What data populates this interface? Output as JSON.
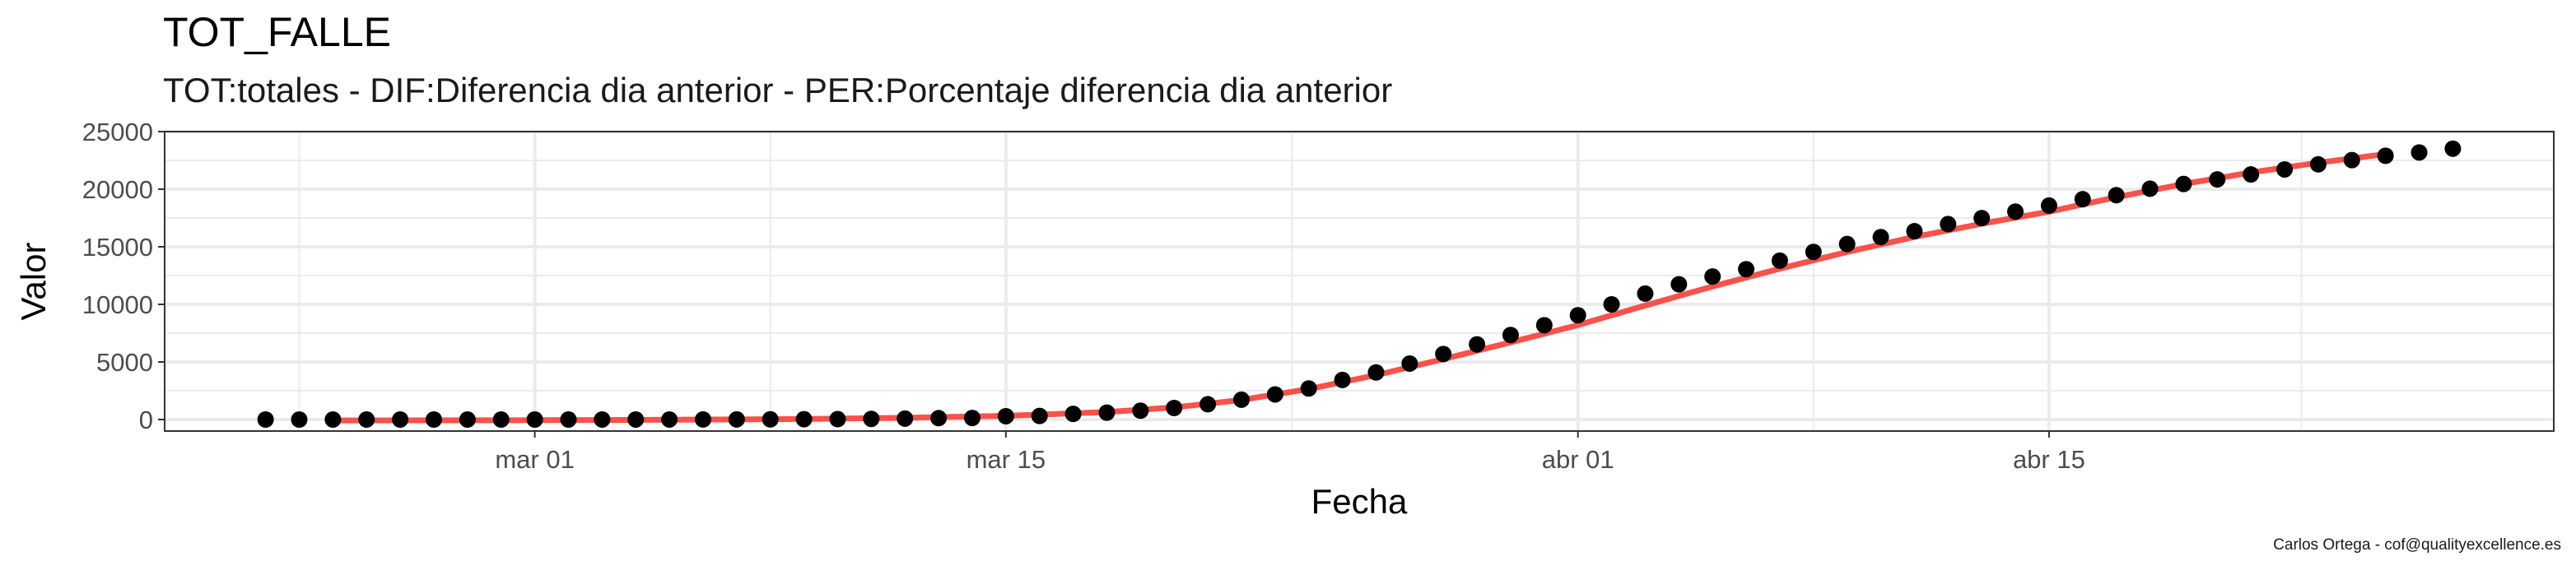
{
  "chart_data": {
    "type": "line",
    "title": "TOT_FALLE",
    "subtitle": "TOT:totales - DIF:Diferencia dia anterior - PER:Porcentaje diferencia dia anterior",
    "xlabel": "Fecha",
    "ylabel": "Valor",
    "caption": "Carlos Ortega - cof@qualityexcellence.es",
    "x_tick_labels": [
      "mar 01",
      "mar 15",
      "abr 01",
      "abr 15"
    ],
    "y_tick_labels": [
      "0",
      "5000",
      "10000",
      "15000",
      "20000",
      "25000"
    ],
    "ylim": [
      -1000,
      25000
    ],
    "xlim": [
      "2020-02-19",
      "2020-04-30"
    ],
    "grid": true,
    "legend": "none",
    "colors": {
      "points": "#000000",
      "fit_line": "#f8524b",
      "grid": "#ebebeb",
      "panel_border": "#333333"
    },
    "series": [
      {
        "type": "scatter",
        "x": [
          "2020-02-22",
          "2020-02-23",
          "2020-02-24",
          "2020-02-25",
          "2020-02-26",
          "2020-02-27",
          "2020-02-28",
          "2020-02-29",
          "2020-03-01",
          "2020-03-02",
          "2020-03-03",
          "2020-03-04",
          "2020-03-05",
          "2020-03-06",
          "2020-03-07",
          "2020-03-08",
          "2020-03-09",
          "2020-03-10",
          "2020-03-11",
          "2020-03-12",
          "2020-03-13",
          "2020-03-14",
          "2020-03-15",
          "2020-03-16",
          "2020-03-17",
          "2020-03-18",
          "2020-03-19",
          "2020-03-20",
          "2020-03-21",
          "2020-03-22",
          "2020-03-23",
          "2020-03-24",
          "2020-03-25",
          "2020-03-26",
          "2020-03-27",
          "2020-03-28",
          "2020-03-29",
          "2020-03-30",
          "2020-03-31",
          "2020-04-01",
          "2020-04-02",
          "2020-04-03",
          "2020-04-04",
          "2020-04-05",
          "2020-04-06",
          "2020-04-07",
          "2020-04-08",
          "2020-04-09",
          "2020-04-10",
          "2020-04-11",
          "2020-04-12",
          "2020-04-13",
          "2020-04-14",
          "2020-04-15",
          "2020-04-16",
          "2020-04-17",
          "2020-04-18",
          "2020-04-19",
          "2020-04-20",
          "2020-04-21",
          "2020-04-22",
          "2020-04-23",
          "2020-04-24",
          "2020-04-25",
          "2020-04-26",
          "2020-04-27"
        ],
        "y": [
          0,
          0,
          0,
          0,
          0,
          0,
          0,
          0,
          0,
          0,
          1,
          2,
          3,
          5,
          10,
          17,
          28,
          35,
          55,
          84,
          121,
          136,
          288,
          309,
          491,
          598,
          767,
          1002,
          1326,
          1720,
          2182,
          2696,
          3434,
          4089,
          4858,
          5690,
          6528,
          7340,
          8189,
          9053,
          10003,
          10935,
          11744,
          12418,
          13055,
          13798,
          14555,
          15238,
          15843,
          16353,
          16972,
          17489,
          18056,
          18579,
          19130,
          19478,
          20043,
          20453,
          20852,
          21282,
          21717,
          22157,
          22524,
          22902,
          23190,
          23521
        ]
      },
      {
        "type": "line",
        "name": "",
        "x": [
          "2020-02-24",
          "2020-03-01",
          "2020-03-05",
          "2020-03-09",
          "2020-03-12",
          "2020-03-15",
          "2020-03-18",
          "2020-03-20",
          "2020-03-22",
          "2020-03-24",
          "2020-03-26",
          "2020-03-28",
          "2020-03-30",
          "2020-04-01",
          "2020-04-03",
          "2020-04-05",
          "2020-04-07",
          "2020-04-09",
          "2020-04-11",
          "2020-04-13",
          "2020-04-15",
          "2020-04-17",
          "2020-04-19",
          "2020-04-21",
          "2020-04-23",
          "2020-04-25"
        ],
        "y": [
          -80,
          -60,
          -20,
          40,
          150,
          320,
          650,
          1050,
          1700,
          2650,
          3850,
          5250,
          6700,
          8200,
          9900,
          11550,
          13100,
          14550,
          15850,
          17000,
          18050,
          19300,
          20450,
          21450,
          22300,
          23050
        ]
      }
    ]
  }
}
